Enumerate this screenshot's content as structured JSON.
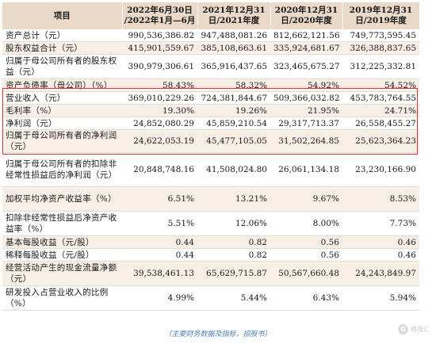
{
  "table": {
    "headers": [
      "项目",
      "2022年6月30日\n/2022年1月—6月",
      "2021年12月31\n日/2021年度",
      "2020年12月31\n日/2020年度",
      "2019年12月31\n日/2019年度"
    ],
    "rows": [
      {
        "label": "资产总计（元）",
        "values": [
          "990,536,386.82",
          "947,488,081.26",
          "812,662,121.56",
          "749,773,595.45"
        ]
      },
      {
        "label": "股东权益合计（元）",
        "values": [
          "415,901,559.67",
          "385,108,663.61",
          "335,924,681.67",
          "326,388,837.65"
        ]
      },
      {
        "label": "归属于母公司所有者的股东权益（元）",
        "values": [
          "390,979,306.61",
          "365,916,437.65",
          "323,465,675.27",
          "312,225,332.81"
        ]
      },
      {
        "label": "资产负债率（母公司）（%）",
        "values": [
          "58.43%",
          "58.32%",
          "54.92%",
          "54.52%"
        ]
      },
      {
        "label": "营业收入（元）",
        "values": [
          "369,010,229.26",
          "724,381,844.67",
          "509,366,032.82",
          "453,783,764.55"
        ]
      },
      {
        "label": "毛利率（%）",
        "values": [
          "19.30%",
          "19.26%",
          "21.95%",
          "24.71%"
        ]
      },
      {
        "label": "净利润（元）",
        "values": [
          "24,852,080.29",
          "45,859,210.54",
          "29,317,713.37",
          "26,558,455.27"
        ]
      },
      {
        "label": "归属于母公司所有者的净利润（元）",
        "values": [
          "24,622,053.19",
          "45,477,105.05",
          "31,502,264.85",
          "25,623,364.23"
        ]
      },
      {
        "label": "归属于母公司所有者的扣除非经常性损益后的净利润（元）",
        "values": [
          "20,848,748.16",
          "41,508,024.80",
          "26,061,134.18",
          "23,230,166.90"
        ]
      },
      {
        "label": "加权平均净资产收益率（%）",
        "values": [
          "6.51%",
          "13.21%",
          "9.67%",
          "8.53%"
        ]
      },
      {
        "label": "扣除非经常性损益后净资产收益率（%）",
        "values": [
          "5.51%",
          "12.06%",
          "8.00%",
          "7.73%"
        ]
      },
      {
        "label": "基本每股收益（元/股）",
        "values": [
          "0.44",
          "0.82",
          "0.56",
          "0.46"
        ]
      },
      {
        "label": "稀释每股收益（元/股）",
        "values": [
          "0.44",
          "0.82",
          "0.56",
          "0.46"
        ]
      },
      {
        "label": "经营活动产生的现金流量净额（元）",
        "values": [
          "39,538,461.13",
          "65,629,715.87",
          "50,567,660.48",
          "24,243,849.97"
        ]
      },
      {
        "label": "研发投入占营业收入的比例（%）",
        "values": [
          "4.99%",
          "5.44%",
          "6.43%",
          "5.94%"
        ]
      }
    ]
  },
  "caption": "（主要财务数据及指标，招股书）",
  "watermark": {
    "text": "格隆汇",
    "logo_char": "G"
  },
  "colors": {
    "header_bg": "#ead9c8",
    "row_alt_bg": "#f7efe6",
    "highlight_border": "#e0303a",
    "caption": "#4a7fb8"
  }
}
